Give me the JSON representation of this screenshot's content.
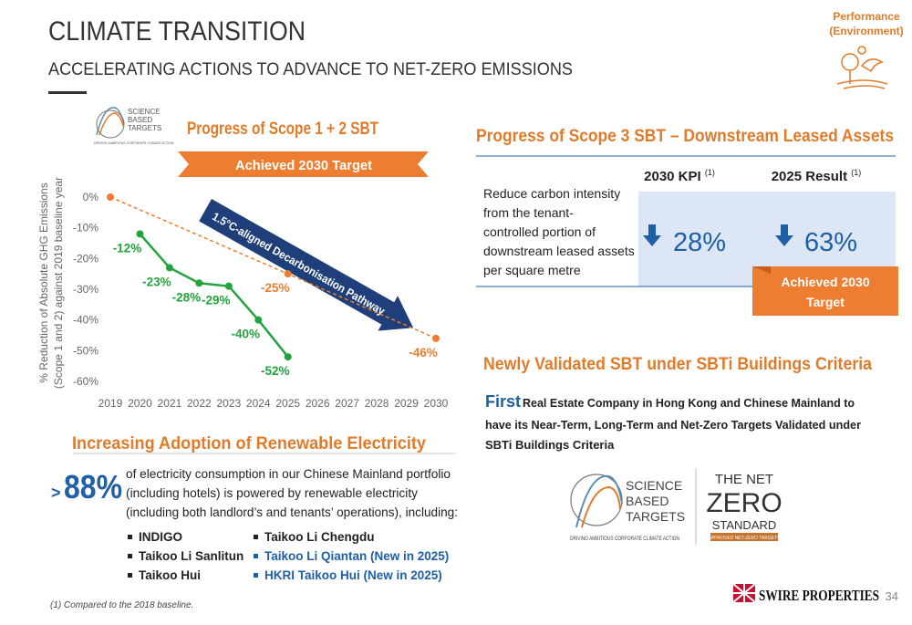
{
  "header": {
    "title": "CLIMATE TRANSITION",
    "subtitle": "ACCELERATING ACTIONS TO ADVANCE TO NET-ZERO EMISSIONS",
    "tag": [
      "Performance",
      "(Environment)"
    ]
  },
  "scope12": {
    "title": "Progress of Scope 1 + 2 SBT",
    "logo": [
      "SCIENCE",
      "BASED",
      "TARGETS",
      "DRIVING AMBITIOUS CORPORATE CLIMATE ACTION"
    ]
  },
  "chart_data": {
    "type": "line",
    "y_label": [
      "% Reduction of Absolute GHG Emissions",
      "(Scope 1 and 2) against 2019 baseline year"
    ],
    "annotations": [
      "Achieved 2030 Target",
      "1.5°C-aligned Decarbonisation Pathway"
    ],
    "xlim": [
      2019,
      2030
    ],
    "xticks": [
      2019,
      2020,
      2021,
      2022,
      2023,
      2024,
      2025,
      2026,
      2027,
      2028,
      2029,
      2030
    ],
    "ylim": [
      -60,
      0
    ],
    "yticks": [
      {
        "value": 0,
        "label": "0%"
      },
      {
        "value": -10,
        "label": "-10%"
      },
      {
        "value": -20,
        "label": "-20%"
      },
      {
        "value": -30,
        "label": "-30%"
      },
      {
        "value": -40,
        "label": "-40%"
      },
      {
        "value": -50,
        "label": "-50%"
      },
      {
        "value": -60,
        "label": "-60%"
      }
    ],
    "grid": false,
    "series": [
      {
        "color": "#22a33c",
        "style": "solid",
        "x": [
          2020,
          2021,
          2022,
          2023,
          2024,
          2025
        ],
        "values": [
          -12,
          -23,
          -28,
          -29,
          -40,
          -52
        ],
        "value_labels": [
          "-12%",
          "-23%",
          "-28%",
          "-29%",
          "-40%",
          "-52%"
        ]
      },
      {
        "color": "#ed7d31",
        "style": "dashed",
        "x": [
          2019,
          2025,
          2030
        ],
        "values": [
          0,
          -25,
          -46
        ],
        "value_labels": [
          null,
          "-25%",
          "-46%"
        ]
      }
    ]
  },
  "scope3": {
    "title": "Progress of Scope 3 SBT – Downstream Leased Assets",
    "columns": [
      {
        "label": "2030 KPI",
        "note": "(1)"
      },
      {
        "label": "2025 Result",
        "note": "(1)"
      }
    ],
    "description": [
      "Reduce carbon intensity",
      "from the tenant-",
      "controlled portion of",
      "downstream leased assets",
      "per square metre"
    ],
    "values": [
      "28%",
      "63%"
    ],
    "badge": [
      "Achieved 2030",
      "Target"
    ]
  },
  "validated": {
    "title": "Newly Validated SBT under SBTi Buildings Criteria",
    "lead": "First",
    "text": [
      "Real Estate Company in Hong Kong and Chinese Mainland to",
      "have its Near-Term, Long-Term and Net-Zero Targets Validated under",
      "SBTi Buildings Criteria"
    ],
    "logo": [
      "SCIENCE",
      "BASED",
      "TARGETS",
      "DRIVING AMBITIOUS CORPORATE CLIMATE ACTION"
    ],
    "netzero": [
      "THE NET",
      "ZERO",
      "STANDARD",
      "APPROVED NET-ZERO TARGETS"
    ]
  },
  "renewable": {
    "title": "Increasing Adoption of Renewable Electricity",
    "prefix": ">",
    "figure": "88%",
    "text": [
      "of electricity consumption in our Chinese Mainland portfolio",
      "(including hotels) is powered by renewable electricity",
      "(including both landlord’s and tenants’ operations), including:"
    ],
    "list_left": [
      "INDIGO",
      "Taikoo Li Sanlitun",
      "Taikoo Hui"
    ],
    "list_right": [
      "Taikoo Li Chengdu",
      "Taikoo Li Qiantan (New in 2025)",
      "HKRI Taikoo Hui (New in 2025)"
    ]
  },
  "footnote": "(1)  Compared to the 2018 baseline.",
  "footer": {
    "brand": "SWIRE PROPERTIES",
    "page": "34"
  }
}
